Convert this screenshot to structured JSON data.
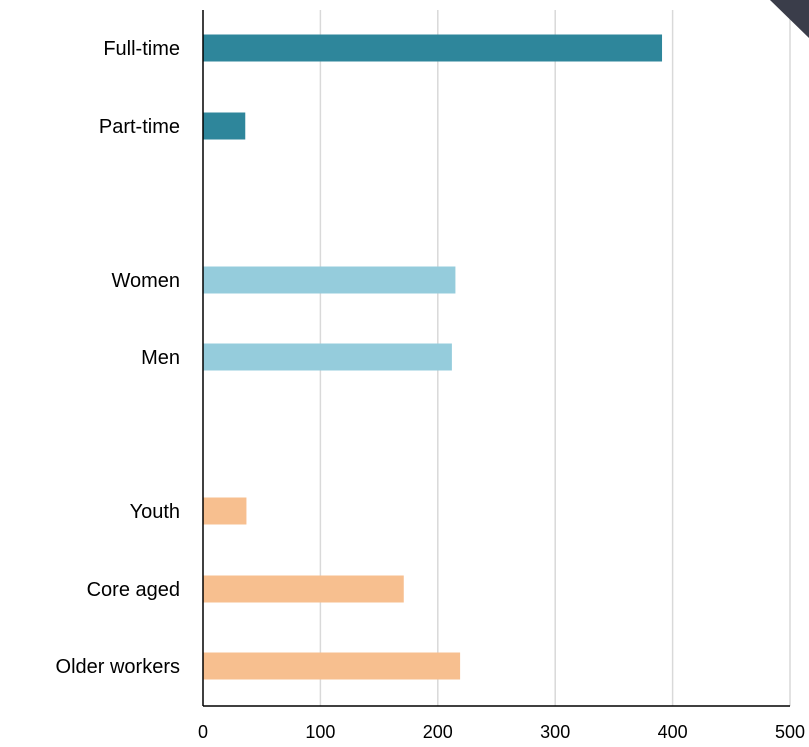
{
  "chart_data": {
    "type": "bar",
    "orientation": "horizontal",
    "categories": [
      "Full-time",
      "Part-time",
      "Women",
      "Men",
      "Youth",
      "Core aged",
      "Older workers"
    ],
    "values": [
      391,
      36,
      215,
      212,
      37,
      171,
      219
    ],
    "category_colors": [
      "#2e869b",
      "#2e869b",
      "#95ccdc",
      "#95ccdc",
      "#f7bf8f",
      "#f7bf8f",
      "#f7bf8f"
    ],
    "groups": [
      {
        "categories": [
          "Full-time",
          "Part-time"
        ],
        "color": "#2e869b"
      },
      {
        "categories": [
          "Women",
          "Men"
        ],
        "color": "#95ccdc"
      },
      {
        "categories": [
          "Youth",
          "Core aged",
          "Older workers"
        ],
        "color": "#f7bf8f"
      }
    ],
    "x_ticks": [
      "0",
      "100",
      "200",
      "300",
      "400",
      "500"
    ],
    "xlim": [
      0,
      500
    ],
    "title": "",
    "xlabel": "",
    "ylabel": "",
    "grid": "vertical",
    "legend": "none"
  }
}
